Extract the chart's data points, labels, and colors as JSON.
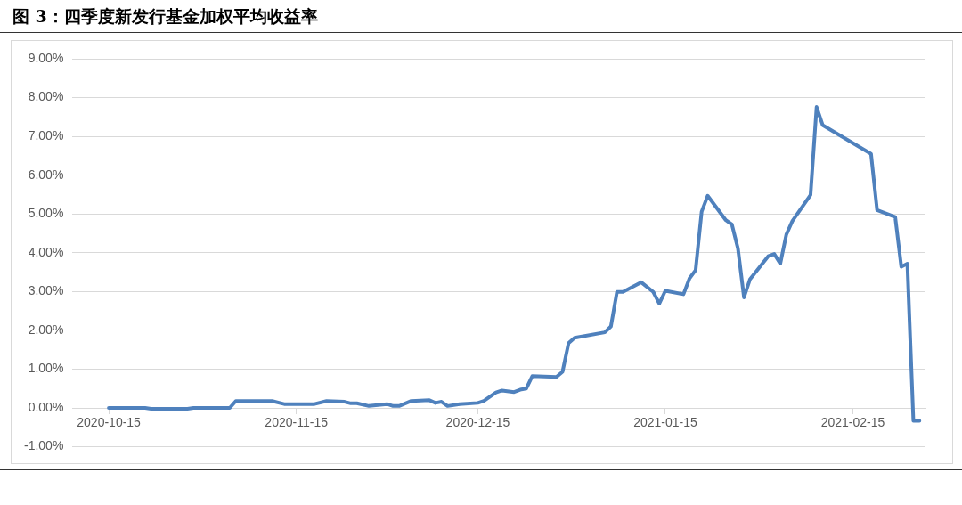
{
  "chart_data": {
    "type": "line",
    "title": "图 3：四季度新发行基金加权平均收益率",
    "x": [
      "2020-10-15",
      "2020-10-21",
      "2020-10-22",
      "2020-10-28",
      "2020-10-29",
      "2020-11-04",
      "2020-11-05",
      "2020-11-11",
      "2020-11-13",
      "2020-11-18",
      "2020-11-20",
      "2020-11-23",
      "2020-11-24",
      "2020-11-25",
      "2020-11-27",
      "2020-11-30",
      "2020-12-01",
      "2020-12-02",
      "2020-12-04",
      "2020-12-07",
      "2020-12-08",
      "2020-12-09",
      "2020-12-10",
      "2020-12-12",
      "2020-12-15",
      "2020-12-16",
      "2020-12-18",
      "2020-12-19",
      "2020-12-21",
      "2020-12-22",
      "2020-12-23",
      "2020-12-24",
      "2020-12-28",
      "2020-12-29",
      "2020-12-30",
      "2020-12-31",
      "2021-01-05",
      "2021-01-06",
      "2021-01-07",
      "2021-01-08",
      "2021-01-11",
      "2021-01-13",
      "2021-01-14",
      "2021-01-15",
      "2021-01-18",
      "2021-01-19",
      "2021-01-20",
      "2021-01-21",
      "2021-01-22",
      "2021-01-25",
      "2021-01-26",
      "2021-01-27",
      "2021-01-28",
      "2021-01-29",
      "2021-02-01",
      "2021-02-02",
      "2021-02-03",
      "2021-02-04",
      "2021-02-05",
      "2021-02-08",
      "2021-02-09",
      "2021-02-10",
      "2021-02-18",
      "2021-02-19",
      "2021-02-22",
      "2021-02-23",
      "2021-02-24",
      "2021-02-25",
      "2021-02-26"
    ],
    "series": [
      {
        "color": "#4f81bd",
        "values": [
          0,
          0,
          -0.02,
          -0.02,
          0,
          0,
          0.18,
          0.18,
          0.1,
          0.1,
          0.18,
          0.16,
          0.12,
          0.12,
          0.05,
          0.1,
          0.05,
          0.05,
          0.18,
          0.2,
          0.13,
          0.16,
          0.05,
          0.1,
          0.13,
          0.18,
          0.4,
          0.45,
          0.41,
          0.47,
          0.5,
          0.82,
          0.8,
          0.93,
          1.67,
          1.81,
          1.95,
          2.1,
          2.99,
          2.99,
          3.24,
          2.99,
          2.69,
          3.02,
          2.93,
          3.34,
          3.55,
          5.06,
          5.47,
          4.84,
          4.73,
          4.11,
          2.85,
          3.32,
          3.91,
          3.97,
          3.72,
          4.47,
          4.82,
          5.49,
          7.76,
          7.29,
          6.55,
          5.1,
          4.92,
          3.64,
          3.72,
          -0.33,
          -0.33
        ]
      }
    ],
    "xlim": [
      "2020-10-09",
      "2021-02-27"
    ],
    "xticks": [
      "2020-10-15",
      "2020-11-15",
      "2020-12-15",
      "2021-01-15",
      "2021-02-15"
    ],
    "ylim": [
      -1,
      9
    ],
    "yticks": [
      {
        "value": -1,
        "label": "-1.00%"
      },
      {
        "value": 0,
        "label": "0.00%"
      },
      {
        "value": 1,
        "label": "1.00%"
      },
      {
        "value": 2,
        "label": "2.00%"
      },
      {
        "value": 3,
        "label": "3.00%"
      },
      {
        "value": 4,
        "label": "4.00%"
      },
      {
        "value": 5,
        "label": "5.00%"
      },
      {
        "value": 6,
        "label": "6.00%"
      },
      {
        "value": 7,
        "label": "7.00%"
      },
      {
        "value": 8,
        "label": "8.00%"
      },
      {
        "value": 9,
        "label": "9.00%"
      }
    ],
    "grid": "y",
    "legend": false,
    "marker": "none",
    "line_style": "solid"
  }
}
